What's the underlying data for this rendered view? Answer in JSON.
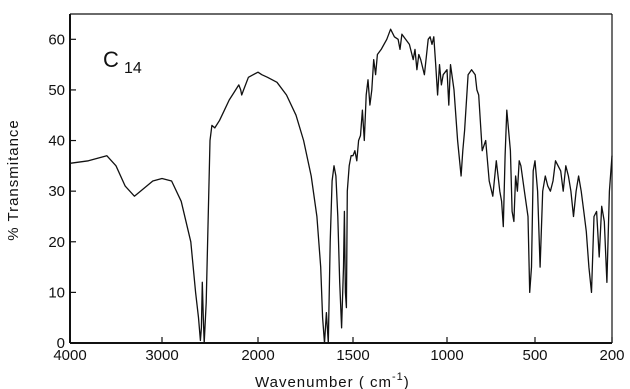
{
  "chart_data": {
    "type": "line",
    "title": "",
    "panel_label": "C",
    "panel_label_sub": "14",
    "xlabel": "Wavenumber ( cm",
    "xlabel_sup": "-1",
    "xlabel_close": ")",
    "ylabel": "% Transmitance",
    "grid": false,
    "ylim": [
      0,
      65
    ],
    "x_ticks": [
      {
        "pos": 0,
        "label": "4000"
      },
      {
        "pos": 1,
        "label": "3000"
      },
      {
        "pos": 2,
        "label": "2000"
      },
      {
        "pos": 3,
        "label": "1500"
      },
      {
        "pos": 4,
        "label": "1000"
      },
      {
        "pos": 5,
        "label": "500"
      },
      {
        "pos": 6,
        "label": "200"
      }
    ],
    "y_ticks": [
      0,
      10,
      20,
      30,
      40,
      50,
      60
    ],
    "x_axis_note": "piecewise-linear wavenumber axis: 4000-3000-2000 in one scale, 2000-1500-1000-500-200 in expanded scale",
    "series": [
      {
        "name": "",
        "color": "#111111",
        "points": [
          [
            4000,
            35.5
          ],
          [
            3800,
            36
          ],
          [
            3700,
            36.5
          ],
          [
            3600,
            37
          ],
          [
            3500,
            35
          ],
          [
            3400,
            31
          ],
          [
            3300,
            29
          ],
          [
            3200,
            30.5
          ],
          [
            3100,
            32
          ],
          [
            3000,
            32.5
          ],
          [
            2900,
            32
          ],
          [
            2800,
            28
          ],
          [
            2700,
            20
          ],
          [
            2650,
            10
          ],
          [
            2620,
            5
          ],
          [
            2600,
            0.5
          ],
          [
            2590,
            3
          ],
          [
            2580,
            12
          ],
          [
            2570,
            5
          ],
          [
            2560,
            0
          ],
          [
            2540,
            8
          ],
          [
            2500,
            40
          ],
          [
            2480,
            43
          ],
          [
            2450,
            42.5
          ],
          [
            2400,
            44
          ],
          [
            2350,
            46
          ],
          [
            2300,
            48
          ],
          [
            2250,
            49.5
          ],
          [
            2200,
            51
          ],
          [
            2180,
            50
          ],
          [
            2170,
            49
          ],
          [
            2150,
            50
          ],
          [
            2100,
            52.5
          ],
          [
            2050,
            53
          ],
          [
            2000,
            53.5
          ],
          [
            1980,
            53
          ],
          [
            1950,
            52.5
          ],
          [
            1900,
            51.5
          ],
          [
            1850,
            49
          ],
          [
            1800,
            45
          ],
          [
            1760,
            40
          ],
          [
            1720,
            33
          ],
          [
            1690,
            25
          ],
          [
            1670,
            15
          ],
          [
            1660,
            5
          ],
          [
            1650,
            0
          ],
          [
            1640,
            6
          ],
          [
            1630,
            0
          ],
          [
            1620,
            20
          ],
          [
            1610,
            32
          ],
          [
            1600,
            35
          ],
          [
            1590,
            33
          ],
          [
            1580,
            25
          ],
          [
            1570,
            12
          ],
          [
            1560,
            3
          ],
          [
            1550,
            15
          ],
          [
            1545,
            26
          ],
          [
            1540,
            10
          ],
          [
            1535,
            7
          ],
          [
            1530,
            30
          ],
          [
            1520,
            35
          ],
          [
            1510,
            37
          ],
          [
            1500,
            37
          ],
          [
            1490,
            38
          ],
          [
            1480,
            36
          ],
          [
            1470,
            40
          ],
          [
            1460,
            41
          ],
          [
            1450,
            46
          ],
          [
            1440,
            40
          ],
          [
            1430,
            49
          ],
          [
            1420,
            52
          ],
          [
            1410,
            47
          ],
          [
            1400,
            50
          ],
          [
            1390,
            56
          ],
          [
            1380,
            53
          ],
          [
            1370,
            57
          ],
          [
            1350,
            58
          ],
          [
            1320,
            60
          ],
          [
            1300,
            62
          ],
          [
            1280,
            60.5
          ],
          [
            1260,
            60
          ],
          [
            1250,
            58
          ],
          [
            1240,
            61
          ],
          [
            1220,
            60
          ],
          [
            1200,
            59
          ],
          [
            1180,
            56
          ],
          [
            1170,
            58
          ],
          [
            1160,
            54
          ],
          [
            1150,
            57
          ],
          [
            1140,
            56
          ],
          [
            1120,
            53
          ],
          [
            1100,
            60
          ],
          [
            1090,
            60.5
          ],
          [
            1080,
            59
          ],
          [
            1070,
            60.5
          ],
          [
            1060,
            55
          ],
          [
            1050,
            49
          ],
          [
            1040,
            55
          ],
          [
            1030,
            51
          ],
          [
            1020,
            53
          ],
          [
            1000,
            54
          ],
          [
            990,
            47
          ],
          [
            980,
            55
          ],
          [
            960,
            50
          ],
          [
            940,
            40
          ],
          [
            920,
            33
          ],
          [
            910,
            38
          ],
          [
            900,
            42
          ],
          [
            880,
            53
          ],
          [
            860,
            54
          ],
          [
            840,
            53
          ],
          [
            830,
            50
          ],
          [
            820,
            49
          ],
          [
            800,
            38
          ],
          [
            780,
            40
          ],
          [
            760,
            32
          ],
          [
            740,
            29
          ],
          [
            720,
            36
          ],
          [
            700,
            30
          ],
          [
            690,
            28
          ],
          [
            680,
            23
          ],
          [
            670,
            37
          ],
          [
            660,
            46
          ],
          [
            650,
            42
          ],
          [
            640,
            38
          ],
          [
            630,
            26
          ],
          [
            620,
            24
          ],
          [
            610,
            33
          ],
          [
            600,
            30
          ],
          [
            590,
            36
          ],
          [
            580,
            35
          ],
          [
            560,
            30
          ],
          [
            540,
            25
          ],
          [
            530,
            10
          ],
          [
            520,
            15
          ],
          [
            510,
            34
          ],
          [
            500,
            36
          ],
          [
            490,
            30
          ],
          [
            480,
            15
          ],
          [
            470,
            30
          ],
          [
            460,
            33
          ],
          [
            450,
            31
          ],
          [
            440,
            30
          ],
          [
            430,
            32
          ],
          [
            420,
            36
          ],
          [
            400,
            34
          ],
          [
            390,
            30
          ],
          [
            380,
            35
          ],
          [
            370,
            33
          ],
          [
            360,
            30
          ],
          [
            350,
            25
          ],
          [
            340,
            30
          ],
          [
            330,
            33
          ],
          [
            320,
            30
          ],
          [
            310,
            26
          ],
          [
            300,
            22
          ],
          [
            290,
            15
          ],
          [
            280,
            10
          ],
          [
            270,
            25
          ],
          [
            260,
            26
          ],
          [
            250,
            17
          ],
          [
            240,
            27
          ],
          [
            230,
            24
          ],
          [
            220,
            12
          ],
          [
            210,
            30
          ],
          [
            200,
            37
          ]
        ]
      }
    ]
  }
}
